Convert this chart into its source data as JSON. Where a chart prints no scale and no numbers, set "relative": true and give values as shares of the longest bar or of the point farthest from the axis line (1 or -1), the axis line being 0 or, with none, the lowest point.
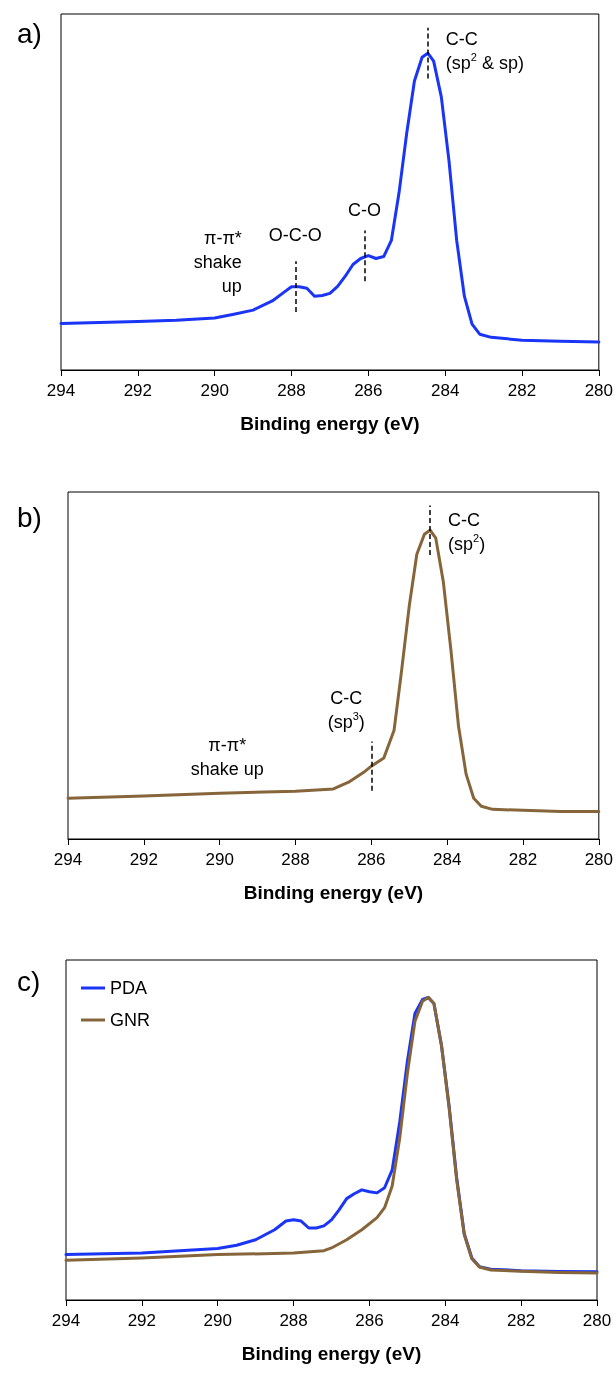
{
  "chart_data": [
    {
      "type": "line",
      "title": "a)",
      "xlabel": "Binding energy (eV)",
      "relative": true,
      "xlim": [
        294,
        280
      ],
      "xticks": [
        294,
        292,
        290,
        288,
        286,
        284,
        282,
        280
      ],
      "grid": false,
      "legend": false,
      "marker": "none",
      "line_style": "solid",
      "annotations": [
        {
          "text": "π-π*\nshake\nup",
          "x": 289.5,
          "y": 0.176
        },
        {
          "text": "O-C-O",
          "x": 287.9,
          "y": 0.263
        },
        {
          "text": "C-O",
          "x": 286.1,
          "y": 0.36
        },
        {
          "text": "C-C\n(sp$^{2}$ & sp)",
          "x": 284.45,
          "y": 1.0
        }
      ],
      "series": [
        {
          "color": "#1a35f5",
          "x": [
            294,
            293,
            292,
            291,
            290,
            289.5,
            289,
            288.5,
            288.2,
            288,
            287.8,
            287.6,
            287.4,
            287.2,
            287,
            286.8,
            286.6,
            286.4,
            286.2,
            286,
            285.8,
            285.6,
            285.4,
            285.2,
            285,
            284.8,
            284.6,
            284.45,
            284.3,
            284.1,
            283.9,
            283.7,
            283.5,
            283.3,
            283.1,
            282.8,
            282,
            281,
            280
          ],
          "values": [
            0.147,
            0.15,
            0.153,
            0.157,
            0.164,
            0.176,
            0.189,
            0.218,
            0.245,
            0.263,
            0.263,
            0.258,
            0.233,
            0.235,
            0.242,
            0.264,
            0.296,
            0.333,
            0.352,
            0.361,
            0.352,
            0.358,
            0.409,
            0.56,
            0.748,
            0.912,
            0.987,
            1.0,
            0.975,
            0.862,
            0.66,
            0.409,
            0.233,
            0.145,
            0.113,
            0.103,
            0.094,
            0.091,
            0.088
          ]
        }
      ]
    },
    {
      "type": "line",
      "title": "b)",
      "xlabel": "Binding energy (eV)",
      "relative": true,
      "xlim": [
        294,
        280
      ],
      "xticks": [
        294,
        292,
        290,
        288,
        286,
        284,
        282,
        280
      ],
      "grid": false,
      "legend": false,
      "marker": "none",
      "line_style": "solid",
      "annotations": [
        {
          "text": "π-π*\nshake up",
          "x": 289.8,
          "y": 0.15
        },
        {
          "text": "C-C\n(sp$^{3}$)",
          "x": 286.0,
          "y": 0.236
        },
        {
          "text": "C-C\n(sp$^{2}$)",
          "x": 284.45,
          "y": 1.0
        }
      ],
      "series": [
        {
          "color": "#86653a",
          "x": [
            294,
            292,
            290,
            288,
            287,
            286.6,
            286.2,
            286,
            285.67,
            285.4,
            285.2,
            285,
            284.8,
            284.6,
            284.45,
            284.3,
            284.1,
            283.9,
            283.7,
            283.5,
            283.3,
            283.1,
            282.8,
            282,
            281,
            280
          ],
          "values": [
            0.132,
            0.139,
            0.148,
            0.155,
            0.162,
            0.184,
            0.216,
            0.236,
            0.262,
            0.352,
            0.547,
            0.754,
            0.922,
            0.987,
            1.0,
            0.974,
            0.832,
            0.611,
            0.365,
            0.21,
            0.132,
            0.106,
            0.096,
            0.093,
            0.089,
            0.089
          ]
        }
      ]
    },
    {
      "type": "line",
      "title": "c)",
      "xlabel": "Binding energy (eV)",
      "relative": true,
      "xlim": [
        294,
        280
      ],
      "xticks": [
        294,
        292,
        290,
        288,
        286,
        284,
        282,
        280
      ],
      "grid": false,
      "legend": "top left",
      "marker": "none",
      "line_style": "solid",
      "series": [
        {
          "name": "PDA",
          "color": "#1a35f5",
          "x": [
            294,
            292,
            290,
            289.5,
            289,
            288.5,
            288.2,
            288,
            287.8,
            287.6,
            287.4,
            287.2,
            287,
            286.8,
            286.6,
            286.4,
            286.2,
            286,
            285.8,
            285.6,
            285.4,
            285.2,
            285,
            284.8,
            284.6,
            284.45,
            284.3,
            284.1,
            283.9,
            283.7,
            283.5,
            283.3,
            283.1,
            282.8,
            282,
            281,
            280
          ],
          "values": [
            0.15,
            0.155,
            0.17,
            0.181,
            0.199,
            0.232,
            0.261,
            0.265,
            0.261,
            0.238,
            0.238,
            0.245,
            0.265,
            0.298,
            0.335,
            0.351,
            0.364,
            0.358,
            0.354,
            0.371,
            0.43,
            0.589,
            0.788,
            0.947,
            0.993,
            1.0,
            0.98,
            0.841,
            0.642,
            0.404,
            0.219,
            0.139,
            0.11,
            0.102,
            0.097,
            0.094,
            0.093
          ]
        },
        {
          "name": "GNR",
          "color": "#86653a",
          "x": [
            294,
            292,
            290,
            288,
            287.2,
            287,
            286.6,
            286.2,
            285.8,
            285.6,
            285.4,
            285.2,
            285,
            284.8,
            284.6,
            284.45,
            284.3,
            284.1,
            283.9,
            283.7,
            283.5,
            283.3,
            283.1,
            282.8,
            282,
            281,
            280
          ],
          "values": [
            0.131,
            0.139,
            0.15,
            0.155,
            0.163,
            0.172,
            0.199,
            0.232,
            0.272,
            0.305,
            0.377,
            0.536,
            0.748,
            0.921,
            0.987,
            1.0,
            0.98,
            0.841,
            0.636,
            0.397,
            0.216,
            0.136,
            0.109,
            0.099,
            0.095,
            0.091,
            0.089
          ]
        }
      ]
    }
  ]
}
